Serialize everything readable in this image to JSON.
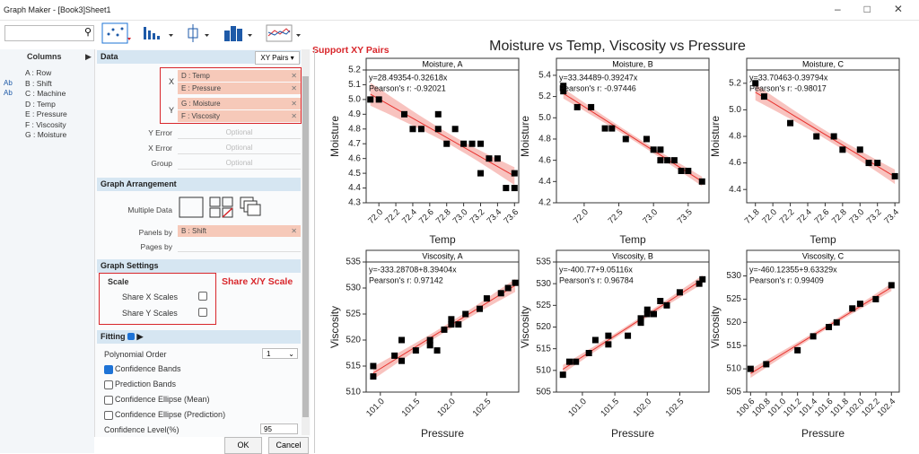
{
  "window": {
    "title": "Graph Maker - [Book3]Sheet1"
  },
  "columns_panel": {
    "header": "Columns",
    "items": [
      {
        "badge": null,
        "label": "A : Row"
      },
      {
        "badge": "Ab",
        "label": "B : Shift"
      },
      {
        "badge": "Ab",
        "label": "C : Machine"
      },
      {
        "badge": null,
        "label": "D : Temp"
      },
      {
        "badge": null,
        "label": "E : Pressure"
      },
      {
        "badge": null,
        "label": "F : Viscosity"
      },
      {
        "badge": null,
        "label": "G : Moisture"
      }
    ]
  },
  "settings": {
    "data_header": "Data",
    "mode": "XY Pairs",
    "x_label": "X",
    "x_items": [
      "D : Temp",
      "E : Pressure"
    ],
    "y_label": "Y",
    "y_items": [
      "G : Moisture",
      "F : Viscosity"
    ],
    "optional_fields": [
      {
        "label": "Y Error",
        "placeholder": "Optional"
      },
      {
        "label": "X Error",
        "placeholder": "Optional"
      },
      {
        "label": "Group",
        "placeholder": "Optional"
      }
    ],
    "arrangement_header": "Graph Arrangement",
    "multiple_data": "Multiple Data",
    "panels_by": "Panels by",
    "panels_by_value": "B : Shift",
    "pages_by": "Pages by",
    "graph_settings_header": "Graph Settings",
    "scale": "Scale",
    "share_x": "Share X Scales",
    "share_y": "Share Y Scales",
    "fitting_header": "Fitting",
    "polynomial_order": "Polynomial Order",
    "polynomial_value": "1",
    "options": [
      {
        "label": "Confidence Bands",
        "checked": true
      },
      {
        "label": "Prediction Bands",
        "checked": false
      },
      {
        "label": "Confidence Ellipse (Mean)",
        "checked": false
      },
      {
        "label": "Confidence Ellipse (Prediction)",
        "checked": false
      }
    ],
    "confidence_level": "Confidence Level(%)",
    "confidence_value": "95",
    "ok": "OK",
    "cancel": "Cancel"
  },
  "annotations": {
    "xy_pairs": "Support XY Pairs",
    "share_scale": "Share X/Y Scale"
  },
  "chart_data": {
    "type": "scatter",
    "title": "Moisture vs Temp, Viscosity vs Pressure",
    "marker_color": "#000000",
    "fit_color": "#e8322e",
    "band_color": "#f5aaa4",
    "panels": [
      {
        "title": "Moisture, A",
        "equation": "y=28.49354-0.32618x",
        "pearson": "Pearson's r: -0.92021",
        "xlabel": "Temp",
        "ylabel": "Moisture",
        "xlim": [
          71.85,
          73.65
        ],
        "ylim": [
          4.3,
          5.2
        ],
        "xticks": [
          {
            "value": 72,
            "label": "72.0"
          },
          72.2,
          72.4,
          72.6,
          72.8,
          {
            "value": 73,
            "label": "73.0"
          },
          73.2,
          73.4,
          73.6
        ],
        "yticks": [
          4.3,
          4.4,
          4.5,
          4.6,
          4.7,
          4.8,
          4.9,
          {
            "value": 5,
            "label": "5.0"
          },
          5.1,
          5.2
        ],
        "x": [
          71.9,
          72.0,
          72.3,
          72.4,
          72.5,
          72.7,
          72.7,
          72.8,
          72.9,
          73.0,
          73.1,
          73.2,
          73.2,
          73.3,
          73.4,
          73.5,
          73.6,
          73.6
        ],
        "y": [
          5.0,
          5.0,
          4.9,
          4.8,
          4.8,
          4.9,
          4.8,
          4.7,
          4.8,
          4.7,
          4.7,
          4.7,
          4.5,
          4.6,
          4.6,
          4.4,
          4.4,
          4.5
        ]
      },
      {
        "title": "Moisture, B",
        "equation": "y=33.34489-0.39247x",
        "pearson": "Pearson's r: -0.97446",
        "xlabel": "Temp",
        "ylabel": "Moisture",
        "xlim": [
          71.6,
          73.8
        ],
        "ylim": [
          4.2,
          5.45
        ],
        "xticks": [
          {
            "value": 72,
            "label": "72.0"
          },
          72.5,
          {
            "value": 73,
            "label": "73.0"
          },
          73.5
        ],
        "yticks": [
          4.2,
          4.4,
          4.6,
          4.8,
          {
            "value": 5,
            "label": "5.0"
          },
          5.2,
          5.4
        ],
        "x": [
          71.7,
          71.7,
          71.9,
          72.1,
          72.3,
          72.4,
          72.6,
          72.9,
          73.0,
          73.1,
          73.1,
          73.2,
          73.3,
          73.4,
          73.5,
          73.7
        ],
        "y": [
          5.3,
          5.25,
          5.1,
          5.1,
          4.9,
          4.9,
          4.8,
          4.8,
          4.7,
          4.7,
          4.6,
          4.6,
          4.6,
          4.5,
          4.5,
          4.4
        ]
      },
      {
        "title": "Moisture, C",
        "equation": "y=33.70463-0.39794x",
        "pearson": "Pearson's r: -0.98017",
        "xlabel": "Temp",
        "ylabel": "Moisture",
        "xlim": [
          71.7,
          73.45
        ],
        "ylim": [
          4.3,
          5.3
        ],
        "xticks": [
          71.8,
          {
            "value": 72,
            "label": "72.0"
          },
          72.2,
          72.4,
          72.6,
          72.8,
          {
            "value": 73,
            "label": "73.0"
          },
          73.2,
          73.4
        ],
        "yticks": [
          4.4,
          4.6,
          4.8,
          {
            "value": 5,
            "label": "5.0"
          },
          5.2
        ],
        "x": [
          71.8,
          71.9,
          72.2,
          72.5,
          72.7,
          72.8,
          73.0,
          73.1,
          73.2,
          73.4
        ],
        "y": [
          5.2,
          5.1,
          4.9,
          4.8,
          4.8,
          4.7,
          4.7,
          4.6,
          4.6,
          4.5
        ]
      },
      {
        "title": "Viscosity, A",
        "equation": "y=-333.28708+8.39404x",
        "pearson": "Pearson's r: 0.97142",
        "xlabel": "Pressure",
        "ylabel": "Viscosity",
        "xlim": [
          100.8,
          102.95
        ],
        "ylim": [
          510,
          535
        ],
        "xticks": [
          {
            "value": 101,
            "label": "101.0"
          },
          101.5,
          {
            "value": 102,
            "label": "102.0"
          },
          102.5
        ],
        "yticks": [
          510,
          515,
          520,
          525,
          530,
          535
        ],
        "x": [
          100.9,
          100.9,
          101.2,
          101.3,
          101.3,
          101.5,
          101.7,
          101.7,
          101.8,
          101.9,
          102.0,
          102.0,
          102.1,
          102.2,
          102.4,
          102.5,
          102.7,
          102.8,
          102.9
        ],
        "y": [
          513,
          515,
          517,
          516,
          520,
          518,
          519,
          520,
          518,
          522,
          523,
          524,
          523,
          525,
          526,
          528,
          529,
          530,
          531
        ]
      },
      {
        "title": "Viscosity, B",
        "equation": "y=-400.77+9.05116x",
        "pearson": "Pearson's r: 0.96784",
        "xlabel": "Pressure",
        "ylabel": "Viscosity",
        "xlim": [
          100.6,
          102.95
        ],
        "ylim": [
          505,
          535
        ],
        "xticks": [
          {
            "value": 101,
            "label": "101.0"
          },
          101.5,
          {
            "value": 102,
            "label": "102.0"
          },
          102.5
        ],
        "yticks": [
          505,
          510,
          515,
          520,
          525,
          530,
          535
        ],
        "x": [
          100.7,
          100.8,
          100.9,
          101.1,
          101.2,
          101.4,
          101.4,
          101.7,
          101.9,
          101.9,
          102.0,
          102.0,
          102.1,
          102.2,
          102.3,
          102.5,
          102.8,
          102.85
        ],
        "y": [
          509,
          512,
          512,
          514,
          517,
          516,
          518,
          518,
          521,
          522,
          524,
          523,
          523,
          526,
          525,
          528,
          530,
          531
        ]
      },
      {
        "title": "Viscosity, C",
        "equation": "y=-460.12355+9.63329x",
        "pearson": "Pearson's r: 0.99409",
        "xlabel": "Pressure",
        "ylabel": "Viscosity",
        "xlim": [
          100.55,
          102.5
        ],
        "ylim": [
          505,
          533
        ],
        "xticks": [
          100.6,
          100.8,
          {
            "value": 101,
            "label": "101.0"
          },
          101.2,
          101.4,
          101.6,
          101.8,
          {
            "value": 102,
            "label": "102.0"
          },
          102.2,
          102.4
        ],
        "yticks": [
          505,
          510,
          515,
          520,
          525,
          530
        ],
        "x": [
          100.6,
          100.8,
          101.2,
          101.4,
          101.6,
          101.7,
          101.9,
          102.0,
          102.2,
          102.4
        ],
        "y": [
          510,
          511,
          514,
          517,
          519,
          520,
          523,
          524,
          525,
          528
        ]
      }
    ]
  }
}
